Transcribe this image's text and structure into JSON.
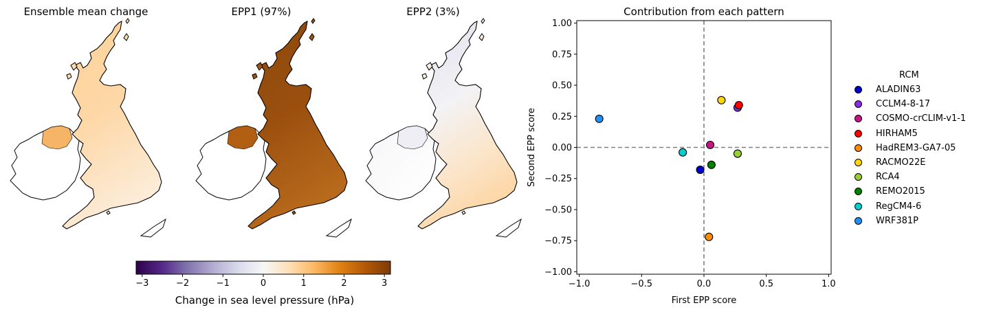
{
  "maps": [
    {
      "title": "Ensemble mean change",
      "fill": "#fdd7a4",
      "ireland_fill": "#ffffff",
      "ni_fill": "#f6b466",
      "shading": "light-orange"
    },
    {
      "title": "EPP1 (97%)",
      "fill": "#9e5210",
      "ireland_fill": "#ffffff",
      "ni_fill": "#b25f14",
      "shading": "dark-brown"
    },
    {
      "title": "EPP2 (3%)",
      "fill": "#f3f0f4",
      "ireland_fill": "#ffffff",
      "ni_fill": "#eeeef4",
      "shading": "lavender-to-peach"
    }
  ],
  "colorbar": {
    "label": "Change in sea level pressure (hPa)",
    "range": [
      -3.15,
      3.15
    ],
    "ticks": [
      -3,
      -2,
      -1,
      0,
      1,
      2,
      3
    ],
    "tick_labels": [
      "−3",
      "−2",
      "−1",
      "0",
      "1",
      "2",
      "3"
    ],
    "colors": [
      "#2d004b",
      "#542788",
      "#8073ac",
      "#b2abd2",
      "#d8daeb",
      "#f7f7f7",
      "#fee0b6",
      "#fdb863",
      "#e08214",
      "#b35806",
      "#7f3b08"
    ]
  },
  "chart_data": {
    "type": "scatter",
    "title": "Contribution from each pattern",
    "xlabel": "First EPP score",
    "ylabel": "Second EPP score",
    "xlim": [
      -1.02,
      1.02
    ],
    "ylim": [
      -1.02,
      1.02
    ],
    "xticks": [
      -1.0,
      -0.5,
      0.0,
      0.5,
      1.0
    ],
    "xtick_labels": [
      "−1.0",
      "−0.5",
      "0.0",
      "0.5",
      "1.0"
    ],
    "yticks": [
      1.0,
      0.75,
      0.5,
      0.25,
      0.0,
      -0.25,
      -0.5,
      -0.75,
      -1.0
    ],
    "ytick_labels": [
      "1.00",
      "0.75",
      "0.50",
      "0.25",
      "0.00",
      "−0.25",
      "−0.50",
      "−0.75",
      "−1.00"
    ],
    "reference_lines": {
      "x": 0,
      "y": 0,
      "style": "dashed"
    },
    "legend_title": "RCM",
    "legend_position": "right",
    "points": [
      {
        "name": "ALADIN63",
        "x": -0.03,
        "y": -0.18,
        "color": "#0000cd"
      },
      {
        "name": "CCLM4-8-17",
        "x": 0.27,
        "y": 0.32,
        "color": "#8a2be2"
      },
      {
        "name": "COSMO-crCLIM-v1-1",
        "x": 0.05,
        "y": 0.02,
        "color": "#c71585"
      },
      {
        "name": "HIRHAM5",
        "x": 0.28,
        "y": 0.34,
        "color": "#ff0000"
      },
      {
        "name": "HadREM3-GA7-05",
        "x": 0.04,
        "y": -0.72,
        "color": "#ff8c00"
      },
      {
        "name": "RACMO22E",
        "x": 0.14,
        "y": 0.38,
        "color": "#ffd700"
      },
      {
        "name": "RCA4",
        "x": 0.27,
        "y": -0.05,
        "color": "#9acd32"
      },
      {
        "name": "REMO2015",
        "x": 0.06,
        "y": -0.14,
        "color": "#008000"
      },
      {
        "name": "RegCM4-6",
        "x": -0.17,
        "y": -0.04,
        "color": "#00ced1"
      },
      {
        "name": "WRF381P",
        "x": -0.84,
        "y": 0.23,
        "color": "#1e90ff"
      }
    ]
  }
}
